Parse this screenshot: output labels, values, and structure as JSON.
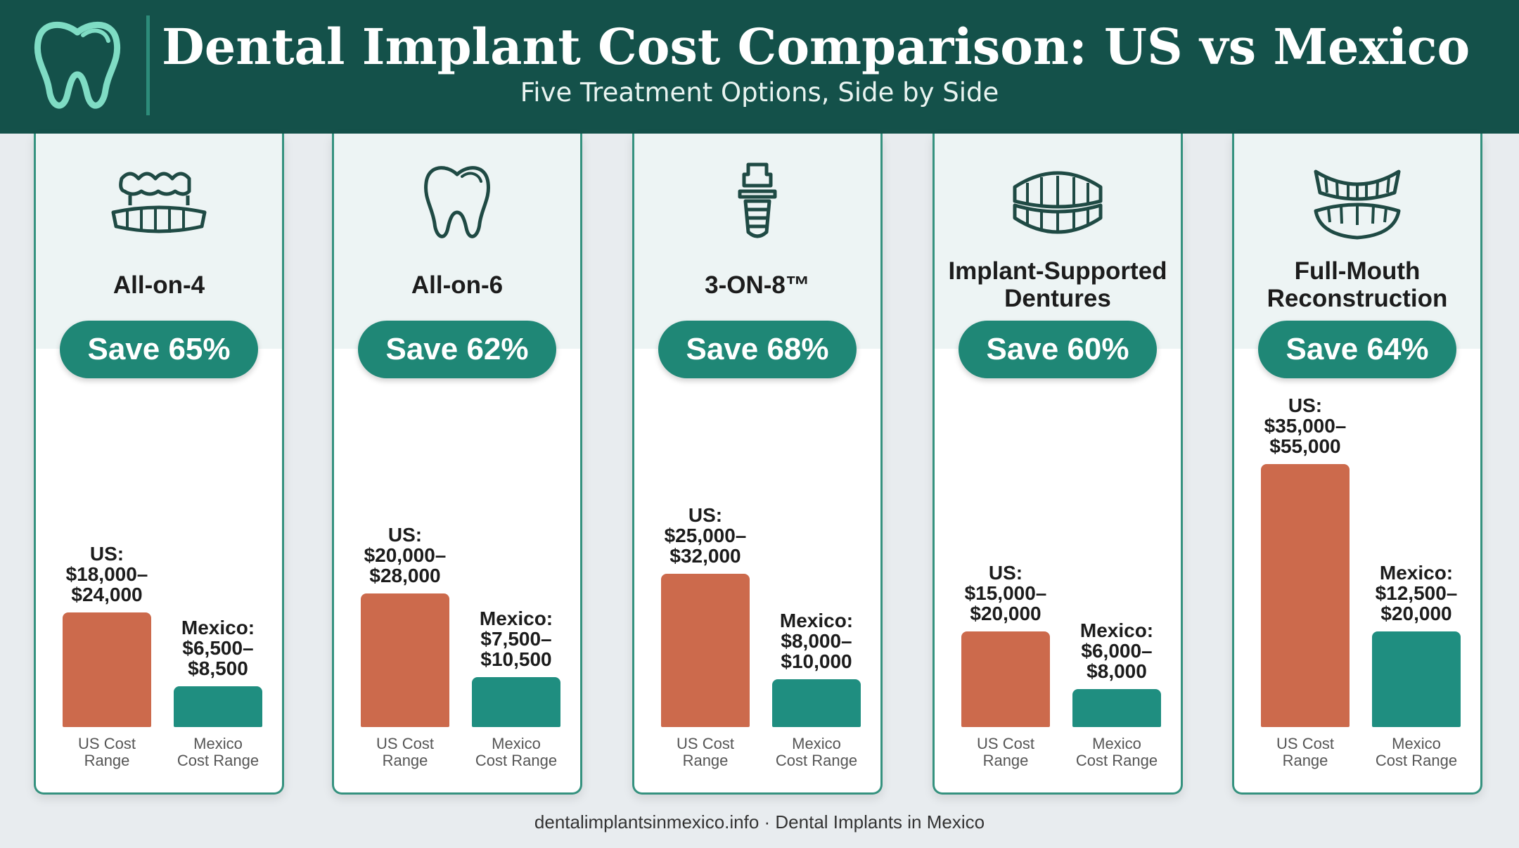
{
  "header": {
    "title": "Dental Implant Cost Comparison: US vs Mexico",
    "subtitle": "Five Treatment Options, Side by Side",
    "logo_icon": "tooth-icon"
  },
  "colors": {
    "header_bg": "#14514a",
    "us_bar": "#cc6a4c",
    "mexico_bar": "#1f8e80",
    "accent": "#1f8776"
  },
  "footer": {
    "text": "dentalimplantsinmexico.info · Dental Implants in Mexico"
  },
  "chart_data": {
    "type": "bar",
    "categories": [
      "All-on-4",
      "All-on-6",
      "3-ON-8™",
      "Implant-Supported Dentures",
      "Full-Mouth Reconstruction"
    ],
    "series": [
      {
        "name": "US Cost Range",
        "ranges": [
          [
            18000,
            24000
          ],
          [
            20000,
            28000
          ],
          [
            25000,
            32000
          ],
          [
            15000,
            20000
          ],
          [
            35000,
            55000
          ]
        ],
        "label_prefix": "US:",
        "labels": [
          [
            "$18,000–",
            "$24,000"
          ],
          [
            "$20,000–",
            "$28,000"
          ],
          [
            "$25,000–",
            "$32,000"
          ],
          [
            "$15,000–",
            "$20,000"
          ],
          [
            "$35,000–",
            "$55,000"
          ]
        ]
      },
      {
        "name": "Mexico Cost Range",
        "ranges": [
          [
            6500,
            8500
          ],
          [
            7500,
            10500
          ],
          [
            8000,
            10000
          ],
          [
            6000,
            8000
          ],
          [
            12500,
            20000
          ]
        ],
        "label_prefix": "Mexico:",
        "labels": [
          [
            "$6,500–",
            "$8,500"
          ],
          [
            "$7,500–",
            "$10,500"
          ],
          [
            "$8,000–",
            "$10,000"
          ],
          [
            "$6,000–",
            "$8,000"
          ],
          [
            "$12,500–",
            "$20,000"
          ]
        ]
      }
    ],
    "savings": [
      "Save 65%",
      "Save 62%",
      "Save 68%",
      "Save 60%",
      "Save 64%"
    ],
    "axis_labels": {
      "us": [
        "US Cost",
        "Range"
      ],
      "mexico": [
        "Mexico",
        "Cost Range"
      ]
    },
    "icons": [
      "bridge-icon",
      "tooth-icon",
      "implant-icon",
      "denture-icon",
      "full-arch-icon"
    ]
  }
}
